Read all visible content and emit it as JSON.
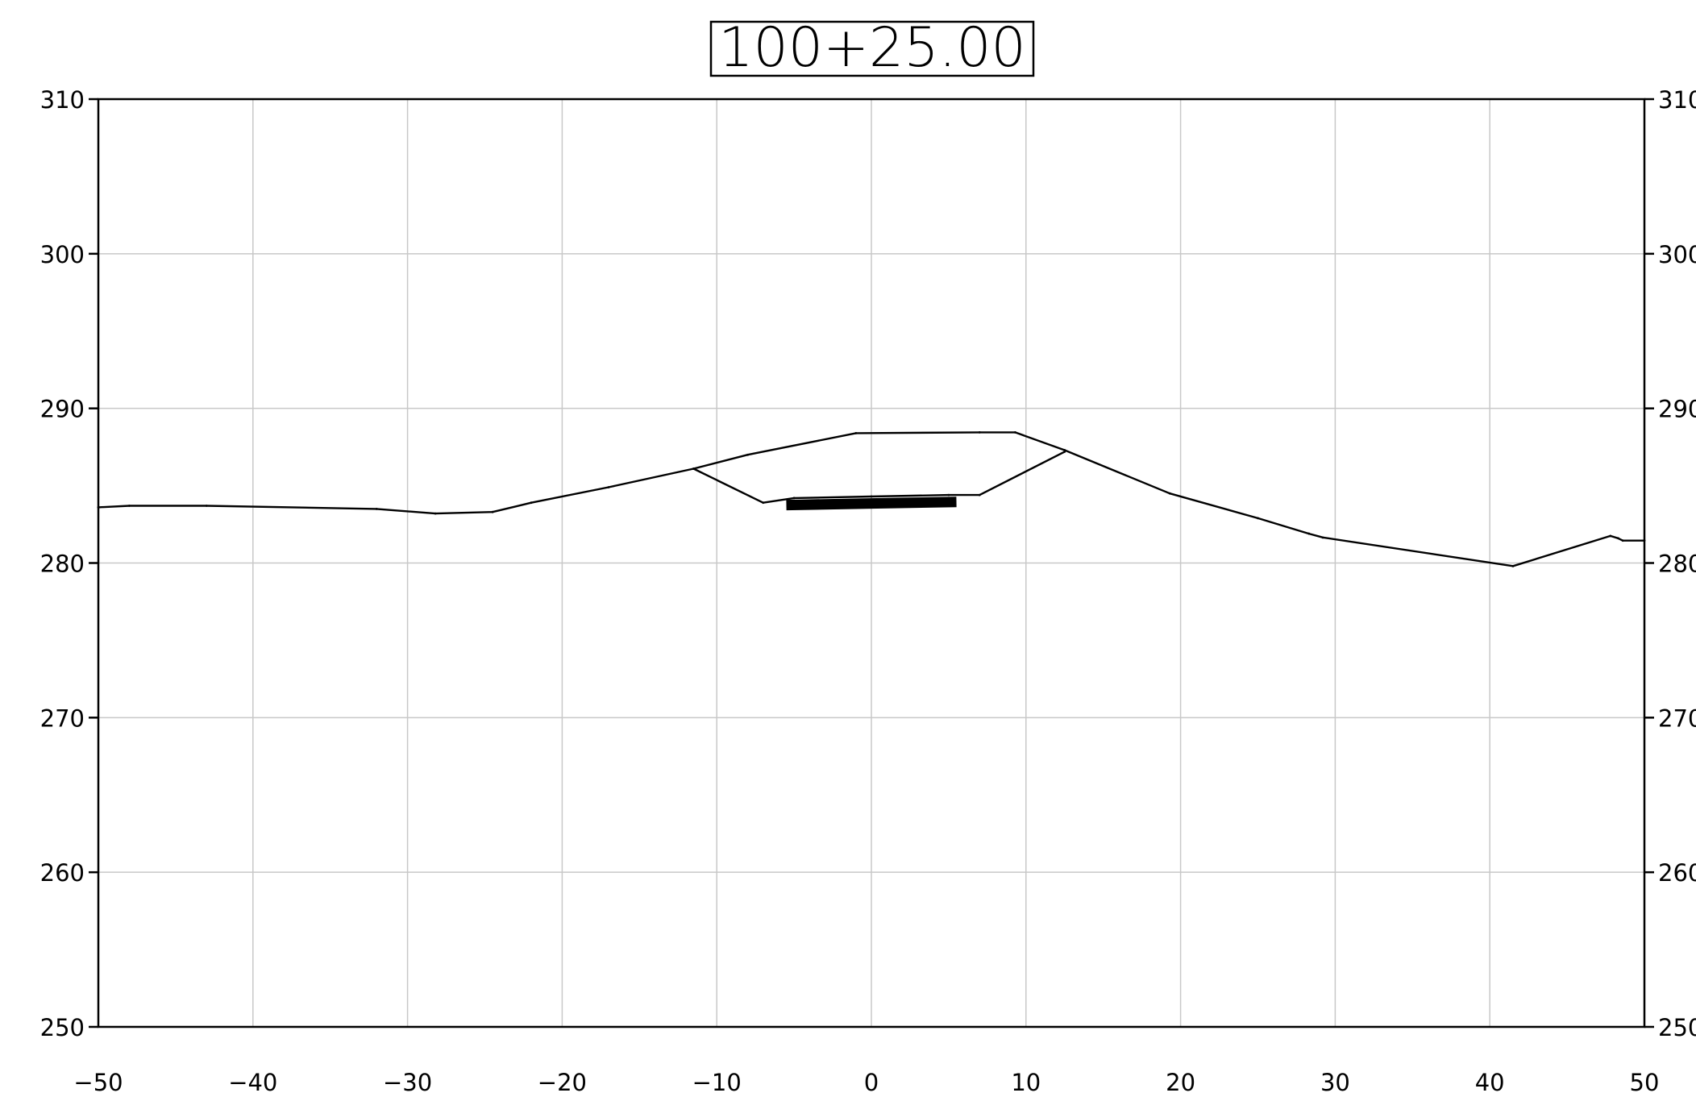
{
  "chart_data": {
    "type": "line",
    "title": "100+25.00",
    "xlabel": "",
    "ylabel": "",
    "xlim": [
      -50,
      50
    ],
    "ylim": [
      250,
      310
    ],
    "x_ticks": [
      -50,
      -40,
      -30,
      -20,
      -10,
      0,
      10,
      20,
      30,
      40,
      50
    ],
    "x_tick_labels": [
      "−50",
      "−40",
      "−30",
      "−20",
      "−10",
      "0",
      "10",
      "20",
      "30",
      "40",
      "50"
    ],
    "y_ticks": [
      250,
      260,
      270,
      280,
      290,
      300,
      310
    ],
    "y_tick_labels": [
      "250",
      "260",
      "270",
      "280",
      "290",
      "300",
      "310"
    ],
    "grid": true,
    "colors": {
      "line": "#000000",
      "grid": "#c8c8c8",
      "frame": "#000000"
    },
    "series": [
      {
        "points": [
          [
            -50,
            283.6
          ],
          [
            -48,
            283.7
          ],
          [
            -43,
            283.7
          ],
          [
            -32,
            283.5
          ],
          [
            -28.2,
            283.2
          ],
          [
            -24.5,
            283.3
          ],
          [
            -22,
            283.9
          ],
          [
            -17,
            284.9
          ],
          [
            -11.5,
            286.1
          ],
          [
            -8,
            287.0
          ],
          [
            -1,
            288.4
          ],
          [
            7,
            288.45
          ],
          [
            9.3,
            288.45
          ],
          [
            12.5,
            287.3
          ],
          [
            19.3,
            284.5
          ],
          [
            25,
            282.9
          ],
          [
            28.3,
            281.9
          ],
          [
            29.2,
            281.65
          ],
          [
            41.5,
            279.8
          ],
          [
            47.8,
            281.75
          ],
          [
            48.3,
            281.6
          ],
          [
            48.6,
            281.45
          ],
          [
            50,
            281.45
          ]
        ]
      },
      {
        "points": [
          [
            -11.5,
            286.1
          ],
          [
            -7,
            283.9
          ],
          [
            -5,
            284.2
          ],
          [
            0,
            284.3
          ],
          [
            5,
            284.4
          ],
          [
            7,
            284.4
          ],
          [
            12.5,
            287.2
          ]
        ]
      },
      {
        "points": [
          [
            -5.5,
            283.75
          ],
          [
            0,
            283.85
          ],
          [
            5.5,
            283.95
          ]
        ]
      }
    ]
  }
}
